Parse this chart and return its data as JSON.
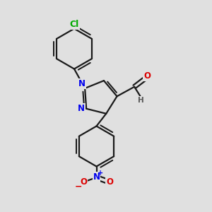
{
  "bg_color": "#e0e0e0",
  "bond_color": "#1a1a1a",
  "bond_width": 1.6,
  "N_color": "#0000ee",
  "O_color": "#dd0000",
  "Cl_color": "#00aa00",
  "H_color": "#555555",
  "font_size_atom": 8.5,
  "fig_width": 3.0,
  "fig_height": 3.0,
  "dpi": 100,
  "xlim": [
    0,
    10
  ],
  "ylim": [
    0,
    10
  ]
}
